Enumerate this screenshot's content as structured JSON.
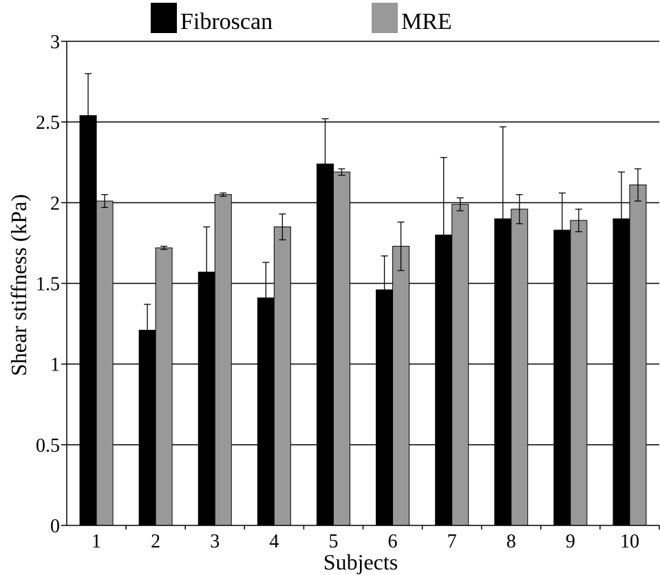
{
  "chart_data": {
    "type": "bar",
    "title": "",
    "xlabel": "Subjects",
    "ylabel": "Shear stiffness (kPa)",
    "ylim": [
      0,
      3
    ],
    "yticks": [
      "0",
      "0.5",
      "1",
      "1.5",
      "2",
      "2.5",
      "3"
    ],
    "grid": true,
    "legend_position": "top",
    "categories": [
      "1",
      "2",
      "3",
      "4",
      "5",
      "6",
      "7",
      "8",
      "9",
      "10"
    ],
    "series": [
      {
        "name": "Fibroscan",
        "color": "#000000",
        "values": [
          2.54,
          1.21,
          1.57,
          1.41,
          2.24,
          1.46,
          1.8,
          1.9,
          1.83,
          1.9
        ],
        "error": [
          0.26,
          0.16,
          0.28,
          0.22,
          0.28,
          0.21,
          0.48,
          0.57,
          0.23,
          0.29
        ]
      },
      {
        "name": "MRE",
        "color": "#999999",
        "values": [
          2.01,
          1.72,
          2.05,
          1.85,
          2.19,
          1.73,
          1.99,
          1.96,
          1.89,
          2.11
        ],
        "error": [
          0.04,
          0.01,
          0.01,
          0.08,
          0.02,
          0.15,
          0.04,
          0.09,
          0.07,
          0.1
        ]
      }
    ]
  }
}
